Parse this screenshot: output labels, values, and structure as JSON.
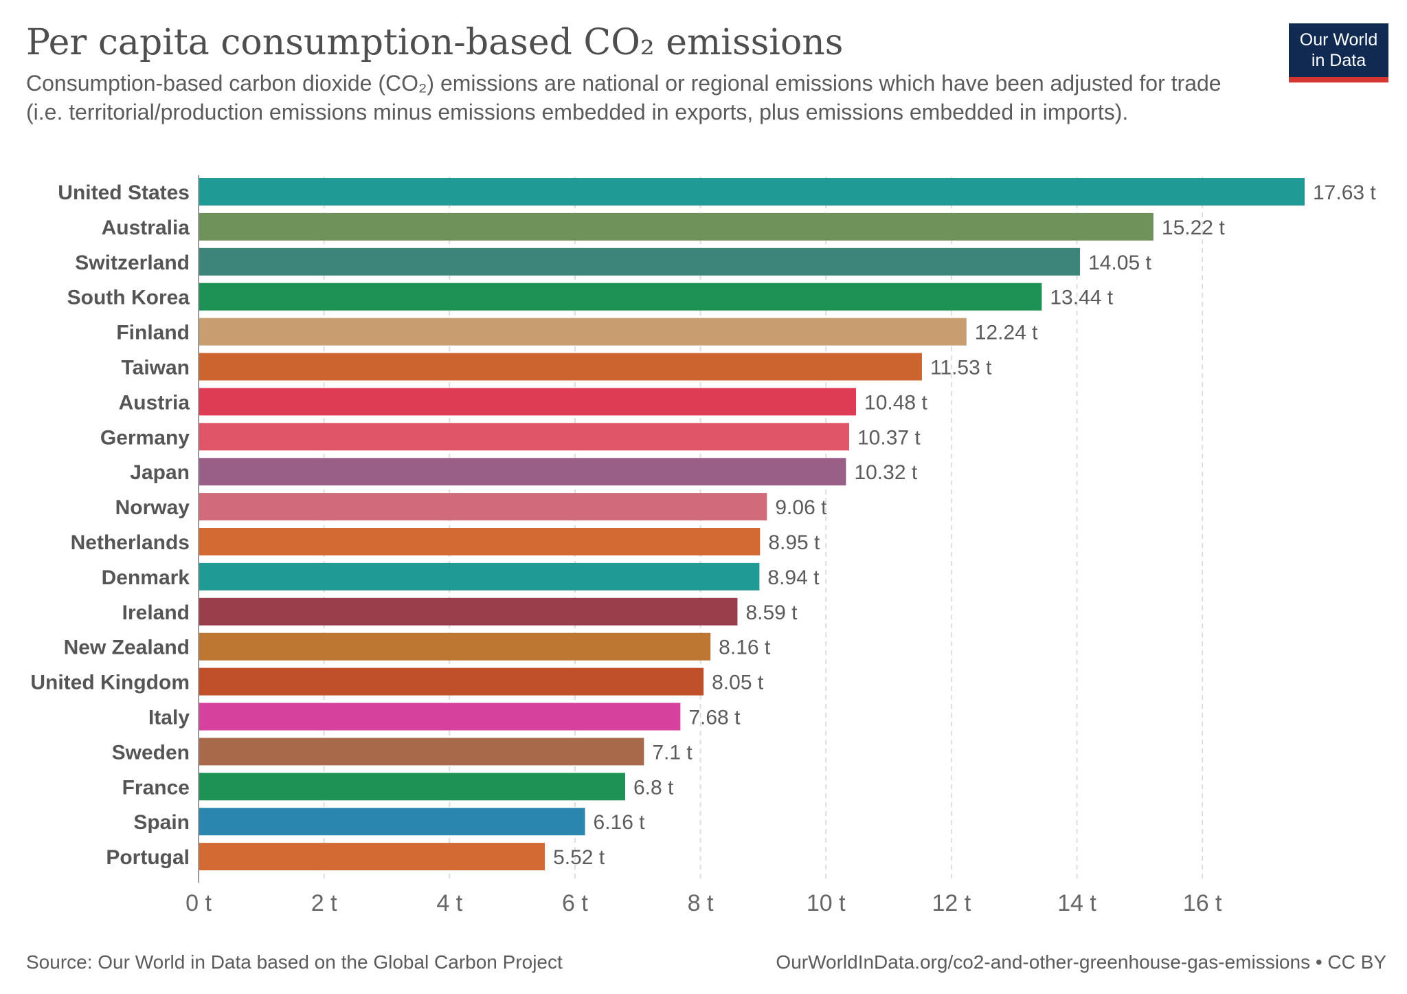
{
  "header": {
    "title": "Per capita consumption-based CO₂ emissions",
    "subtitle": "Consumption-based carbon dioxide (CO₂) emissions are national or regional emissions which have been adjusted for trade (i.e. territorial/production emissions minus emissions embedded in exports, plus emissions embedded in imports).",
    "logo_line1": "Our World",
    "logo_line2": "in Data",
    "logo_bg": "#102a52",
    "logo_accent": "#d63631"
  },
  "chart_data": {
    "type": "bar",
    "orientation": "horizontal",
    "unit_suffix": " t",
    "xlim": [
      0,
      17.63
    ],
    "xticks": [
      0,
      2,
      4,
      6,
      8,
      10,
      12,
      14,
      16
    ],
    "tick_labels": [
      "0 t",
      "2 t",
      "4 t",
      "6 t",
      "8 t",
      "10 t",
      "12 t",
      "14 t",
      "16 t"
    ],
    "grid": true,
    "categories": [
      "United States",
      "Australia",
      "Switzerland",
      "South Korea",
      "Finland",
      "Taiwan",
      "Austria",
      "Germany",
      "Japan",
      "Norway",
      "Netherlands",
      "Denmark",
      "Ireland",
      "New Zealand",
      "United Kingdom",
      "Italy",
      "Sweden",
      "France",
      "Spain",
      "Portugal"
    ],
    "values": [
      17.63,
      15.22,
      14.05,
      13.44,
      12.24,
      11.53,
      10.48,
      10.37,
      10.32,
      9.06,
      8.95,
      8.94,
      8.59,
      8.16,
      8.05,
      7.68,
      7.1,
      6.8,
      6.16,
      5.52
    ],
    "value_labels": [
      "17.63 t",
      "15.22 t",
      "14.05 t",
      "13.44 t",
      "12.24 t",
      "11.53 t",
      "10.48 t",
      "10.37 t",
      "10.32 t",
      "9.06 t",
      "8.95 t",
      "8.94 t",
      "8.59 t",
      "8.16 t",
      "8.05 t",
      "7.68 t",
      "7.1 t",
      "6.8 t",
      "6.16 t",
      "5.52 t"
    ],
    "colors": [
      "#1f9a94",
      "#6f925a",
      "#3d857a",
      "#1e9155",
      "#c89d6f",
      "#cc6430",
      "#de3b55",
      "#e05668",
      "#9a5f86",
      "#d16b7b",
      "#d36a34",
      "#1f9a94",
      "#993e4a",
      "#be7733",
      "#c0502a",
      "#d6419e",
      "#a8694a",
      "#1e9155",
      "#2a86ae",
      "#d36a34"
    ]
  },
  "footer": {
    "source": "Source: Our World in Data based on the Global Carbon Project",
    "url": "OurWorldInData.org/co2-and-other-greenhouse-gas-emissions • CC BY"
  }
}
